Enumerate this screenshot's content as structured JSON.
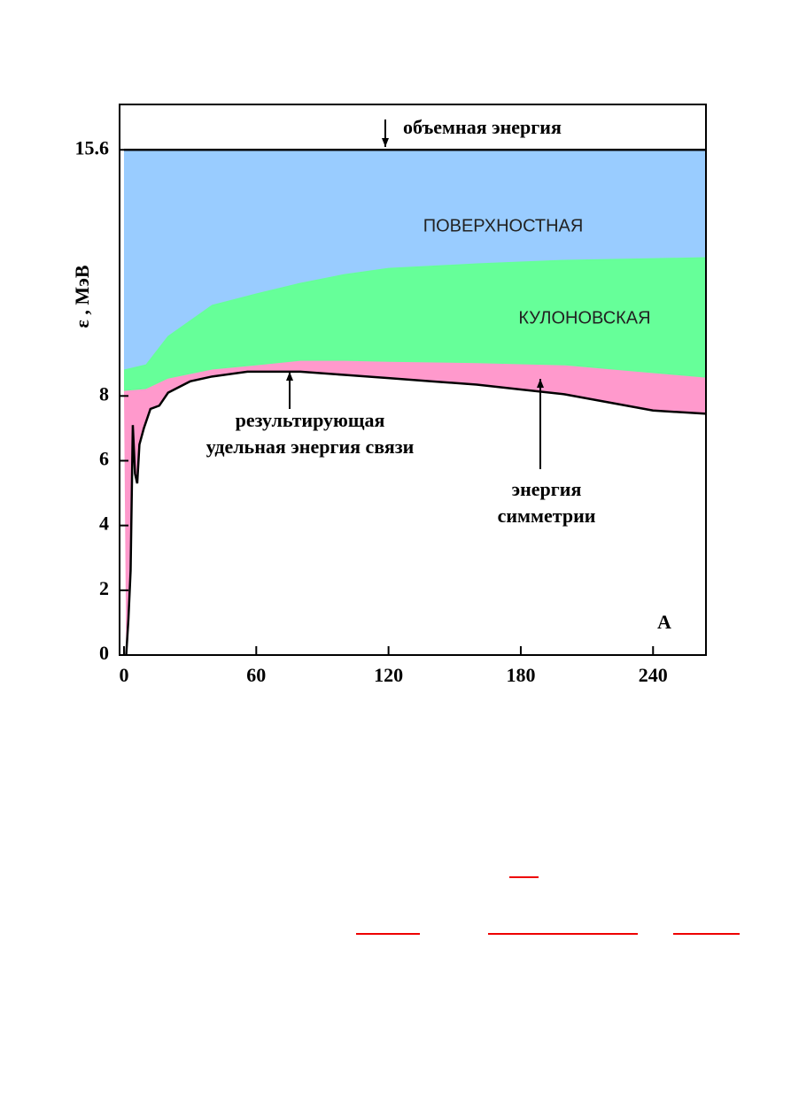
{
  "chart_data": {
    "type": "area",
    "ylabel": "ε , МэВ",
    "xlabel": "A",
    "xlim": [
      -2,
      264
    ],
    "ylim": [
      0,
      17
    ],
    "xticks": [
      0,
      60,
      120,
      180,
      240
    ],
    "yticks": [
      0,
      2,
      4,
      6,
      8,
      15.6
    ],
    "series": [
      {
        "name": "ПОВЕРХНОСТНАЯ",
        "color": "#99ccff",
        "line": "#000000",
        "x": [
          0,
          10,
          20,
          40,
          60,
          80,
          100,
          120,
          160,
          200,
          240,
          264
        ],
        "values": [
          15.6,
          15.6,
          15.6,
          15.6,
          15.6,
          15.6,
          15.6,
          15.6,
          15.6,
          15.6,
          15.6,
          15.6
        ]
      },
      {
        "name": "КУЛОНОВСКАЯ",
        "color": "#66ff99",
        "x": [
          0,
          10,
          20,
          40,
          60,
          80,
          100,
          120,
          160,
          200,
          240,
          264
        ],
        "values": [
          8.8,
          8.96,
          9.84,
          10.8,
          11.15,
          11.48,
          11.75,
          11.94,
          12.08,
          12.19,
          12.24,
          12.27
        ]
      },
      {
        "color": "#ff99cc",
        "x": [
          0,
          10,
          20,
          40,
          60,
          80,
          100,
          120,
          160,
          200,
          240,
          264
        ],
        "values": [
          8.14,
          8.2,
          8.52,
          8.8,
          8.93,
          9.07,
          9.07,
          9.04,
          9.0,
          8.93,
          8.69,
          8.55
        ]
      },
      {
        "color": "#000000",
        "line": "#000000",
        "x": [
          1,
          2,
          3,
          4,
          5,
          6,
          7,
          9,
          12,
          16,
          20,
          30,
          40,
          56,
          80,
          100,
          120,
          140,
          160,
          180,
          200,
          220,
          240,
          264
        ],
        "values": [
          0,
          1.1,
          2.6,
          7.1,
          5.6,
          5.3,
          6.5,
          7.0,
          7.6,
          7.7,
          8.1,
          8.45,
          8.6,
          8.75,
          8.75,
          8.65,
          8.55,
          8.45,
          8.35,
          8.2,
          8.05,
          7.8,
          7.55,
          7.45
        ]
      }
    ],
    "annotations": [
      {
        "lines": [
          "объемная энергия"
        ]
      },
      {
        "lines": [
          "результирующая",
          "удельная энергия связи"
        ]
      },
      {
        "lines": [
          "энергия",
          "симметрии"
        ]
      }
    ]
  }
}
